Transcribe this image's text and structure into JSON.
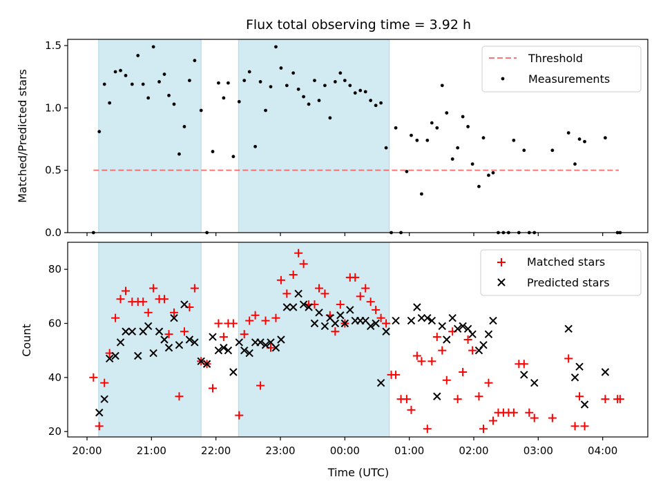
{
  "colors": {
    "shade": "#add8e6",
    "threshold": "#ff5c5c",
    "matched": "#ff0000",
    "predicted": "#000000",
    "measurements": "#000000"
  },
  "chart_data": [
    {
      "type": "scatter",
      "title": "Flux total observing time = 3.92 h",
      "xlabel": "",
      "ylabel": "Matched/Predicted stars",
      "x_unit": "hours since 20:00 UTC",
      "xlim": [
        -0.3,
        8.7
      ],
      "ylim": [
        0.0,
        1.55
      ],
      "yticks": [
        0.0,
        0.5,
        1.0,
        1.5
      ],
      "ytick_labels": [
        "0.0",
        "0.5",
        "1.0",
        "1.5"
      ],
      "xticks": [
        0,
        1,
        2,
        3,
        4,
        5,
        6,
        7,
        8
      ],
      "shaded_intervals": [
        [
          0.18,
          1.77
        ],
        [
          2.35,
          4.69
        ]
      ],
      "legend_position": "top-right",
      "threshold": {
        "name": "Threshold",
        "value": 0.5,
        "x_range": [
          0.1,
          8.25
        ]
      },
      "series": [
        {
          "name": "Measurements",
          "x": [
            0.1,
            0.19,
            0.27,
            0.35,
            0.44,
            0.52,
            0.6,
            0.7,
            0.79,
            0.87,
            0.95,
            1.03,
            1.12,
            1.2,
            1.27,
            1.35,
            1.43,
            1.51,
            1.59,
            1.67,
            1.77,
            1.86,
            1.95,
            2.04,
            2.12,
            2.19,
            2.27,
            2.36,
            2.44,
            2.52,
            2.61,
            2.69,
            2.77,
            2.85,
            2.93,
            3.01,
            3.1,
            3.2,
            3.28,
            3.36,
            3.44,
            3.53,
            3.6,
            3.69,
            3.77,
            3.85,
            3.93,
            4.0,
            4.08,
            4.16,
            4.24,
            4.32,
            4.4,
            4.48,
            4.56,
            4.64,
            4.72,
            4.79,
            4.87,
            4.96,
            5.03,
            5.12,
            5.19,
            5.28,
            5.35,
            5.43,
            5.51,
            5.58,
            5.67,
            5.75,
            5.83,
            5.91,
            5.98,
            6.08,
            6.15,
            6.23,
            6.3,
            6.38,
            6.46,
            6.54,
            6.62,
            6.7,
            6.78,
            6.86,
            6.94,
            7.22,
            7.47,
            7.57,
            7.64,
            7.72,
            8.04,
            8.23,
            8.27
          ],
          "y": [
            0.0,
            0.81,
            1.19,
            1.04,
            1.29,
            1.3,
            1.26,
            1.19,
            1.42,
            1.19,
            1.08,
            1.49,
            1.21,
            1.27,
            1.1,
            1.03,
            0.63,
            0.85,
            1.22,
            1.38,
            0.98,
            0.0,
            0.65,
            1.2,
            1.08,
            1.2,
            0.61,
            1.05,
            1.22,
            1.29,
            0.69,
            1.21,
            0.98,
            1.17,
            1.49,
            1.32,
            1.18,
            1.28,
            1.15,
            1.09,
            1.03,
            1.22,
            1.06,
            1.18,
            0.92,
            1.21,
            1.28,
            1.22,
            1.18,
            1.12,
            1.14,
            1.13,
            1.06,
            1.02,
            1.04,
            0.68,
            0.0,
            0.84,
            0.0,
            0.49,
            0.78,
            0.74,
            0.31,
            0.74,
            0.88,
            0.84,
            1.18,
            0.96,
            0.59,
            0.68,
            0.93,
            0.85,
            0.55,
            0.37,
            0.76,
            0.46,
            0.48,
            0.0,
            0.0,
            0.0,
            0.74,
            0.0,
            0.66,
            0.0,
            0.0,
            0.66,
            0.8,
            0.55,
            0.75,
            0.73,
            0.76,
            0.0,
            0.0
          ]
        }
      ]
    },
    {
      "type": "scatter",
      "title": "",
      "xlabel": "Time (UTC)",
      "ylabel": "Count",
      "x_unit": "hours since 20:00 UTC",
      "xlim": [
        -0.3,
        8.7
      ],
      "ylim": [
        18,
        90
      ],
      "yticks": [
        20,
        40,
        60,
        80
      ],
      "ytick_labels": [
        "20",
        "40",
        "60",
        "80"
      ],
      "xticks": [
        0,
        1,
        2,
        3,
        4,
        5,
        6,
        7,
        8
      ],
      "xtick_labels": [
        "20:00",
        "21:00",
        "22:00",
        "23:00",
        "00:00",
        "01:00",
        "02:00",
        "03:00",
        "04:00"
      ],
      "shaded_intervals": [
        [
          0.18,
          1.77
        ],
        [
          2.35,
          4.69
        ]
      ],
      "legend_position": "top-right",
      "series": [
        {
          "name": "Matched stars",
          "marker": "+",
          "x": [
            0.1,
            0.19,
            0.27,
            0.35,
            0.44,
            0.52,
            0.6,
            0.7,
            0.79,
            0.87,
            0.95,
            1.03,
            1.12,
            1.2,
            1.27,
            1.35,
            1.43,
            1.51,
            1.59,
            1.67,
            1.77,
            1.86,
            1.95,
            2.04,
            2.12,
            2.19,
            2.27,
            2.36,
            2.44,
            2.52,
            2.61,
            2.69,
            2.77,
            2.85,
            2.93,
            3.01,
            3.1,
            3.2,
            3.28,
            3.36,
            3.44,
            3.53,
            3.6,
            3.69,
            3.77,
            3.85,
            3.93,
            4.0,
            4.08,
            4.16,
            4.24,
            4.32,
            4.4,
            4.48,
            4.56,
            4.64,
            4.72,
            4.79,
            4.87,
            4.96,
            5.03,
            5.12,
            5.19,
            5.28,
            5.35,
            5.43,
            5.51,
            5.58,
            5.67,
            5.75,
            5.83,
            5.91,
            5.98,
            6.08,
            6.15,
            6.23,
            6.3,
            6.38,
            6.46,
            6.54,
            6.62,
            6.7,
            6.78,
            6.86,
            6.94,
            7.22,
            7.47,
            7.57,
            7.64,
            7.72,
            8.04,
            8.23,
            8.27
          ],
          "y": [
            40,
            22,
            38,
            49,
            62,
            69,
            72,
            68,
            68,
            68,
            64,
            73,
            69,
            69,
            56,
            64,
            33,
            57,
            66,
            73,
            46,
            45,
            36,
            60,
            55,
            60,
            60,
            26,
            56,
            61,
            63,
            37,
            61,
            51,
            62,
            76,
            71,
            78,
            86,
            82,
            67,
            67,
            73,
            71,
            63,
            57,
            67,
            60,
            77,
            77,
            70,
            73,
            68,
            65,
            62,
            60,
            41,
            41,
            32,
            32,
            28,
            48,
            46,
            21,
            46,
            55,
            50,
            39,
            57,
            32,
            42,
            54,
            50,
            33,
            21,
            38,
            24,
            27,
            27,
            27,
            27,
            45,
            45,
            27,
            25,
            25,
            47,
            22,
            33,
            22,
            32,
            32,
            32
          ]
        },
        {
          "name": "Predicted stars",
          "marker": "x",
          "x": [
            0.19,
            0.27,
            0.35,
            0.44,
            0.52,
            0.6,
            0.7,
            0.79,
            0.87,
            0.95,
            1.03,
            1.12,
            1.2,
            1.27,
            1.35,
            1.43,
            1.51,
            1.59,
            1.67,
            1.77,
            1.86,
            1.95,
            2.04,
            2.12,
            2.19,
            2.27,
            2.36,
            2.44,
            2.52,
            2.61,
            2.69,
            2.77,
            2.85,
            2.93,
            3.01,
            3.1,
            3.2,
            3.28,
            3.36,
            3.44,
            3.53,
            3.6,
            3.69,
            3.77,
            3.85,
            3.93,
            4.0,
            4.08,
            4.16,
            4.24,
            4.32,
            4.4,
            4.48,
            4.56,
            4.64,
            4.79,
            5.03,
            5.12,
            5.19,
            5.28,
            5.35,
            5.43,
            5.51,
            5.58,
            5.67,
            5.75,
            5.83,
            5.91,
            5.98,
            6.08,
            6.15,
            6.23,
            6.3,
            6.78,
            6.94,
            7.47,
            7.57,
            7.64,
            7.72,
            8.04
          ],
          "y": [
            27,
            32,
            47,
            48,
            53,
            57,
            57,
            48,
            57,
            59,
            49,
            57,
            54,
            51,
            62,
            52,
            67,
            54,
            53,
            46,
            45,
            55,
            50,
            51,
            50,
            42,
            53,
            50,
            49,
            53,
            53,
            52,
            53,
            51,
            54,
            66,
            66,
            71,
            67,
            66,
            60,
            64,
            59,
            62,
            60,
            63,
            60,
            65,
            61,
            61,
            61,
            59,
            60,
            38,
            57,
            61,
            61,
            66,
            62,
            62,
            61,
            33,
            59,
            54,
            62,
            58,
            59,
            58,
            56,
            50,
            52,
            56,
            61,
            41,
            38,
            58,
            40,
            44,
            30,
            42
          ]
        }
      ]
    }
  ]
}
